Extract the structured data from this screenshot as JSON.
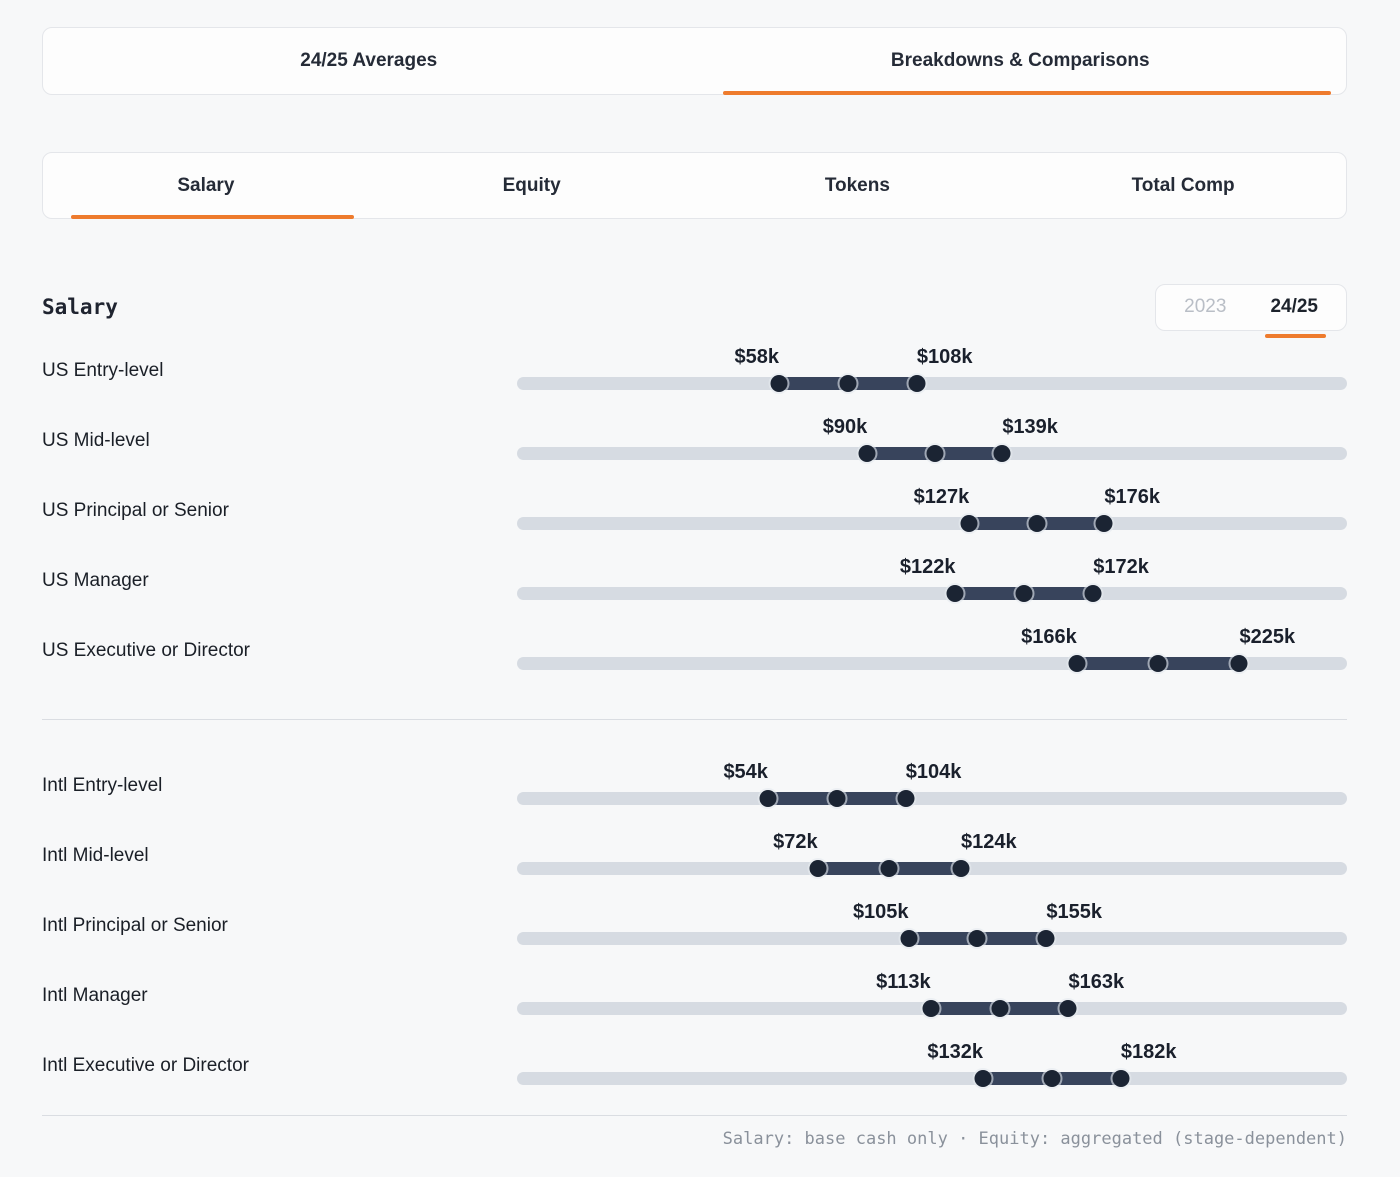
{
  "colors": {
    "accent": "#ee7b2d",
    "track": "#d6dbe2",
    "range_segment": "#38445c",
    "range_dot": "#1b2433"
  },
  "primary_tabs": [
    {
      "label": "24/25 Averages",
      "active": false
    },
    {
      "label": "Breakdowns & Comparisons",
      "active": true
    }
  ],
  "secondary_tabs": [
    {
      "label": "Salary",
      "active": true
    },
    {
      "label": "Equity",
      "active": false
    },
    {
      "label": "Tokens",
      "active": false
    },
    {
      "label": "Total Comp",
      "active": false
    }
  ],
  "section": {
    "title": "Salary"
  },
  "year_toggle": {
    "options": [
      {
        "label": "2023",
        "active": false
      },
      {
        "label": "24/25",
        "active": true
      }
    ]
  },
  "chart_data": {
    "type": "bar",
    "subtype": "range",
    "title": "Salary",
    "legend": false,
    "grid": false,
    "track_domain": {
      "min": -37,
      "max": 264
    },
    "groups": [
      {
        "name": "US",
        "rows": [
          {
            "label": "US Entry-level",
            "low": 58,
            "high": 108,
            "low_label": "$58k",
            "high_label": "$108k"
          },
          {
            "label": "US Mid-level",
            "low": 90,
            "high": 139,
            "low_label": "$90k",
            "high_label": "$139k"
          },
          {
            "label": "US Principal or Senior",
            "low": 127,
            "high": 176,
            "low_label": "$127k",
            "high_label": "$176k"
          },
          {
            "label": "US Manager",
            "low": 122,
            "high": 172,
            "low_label": "$122k",
            "high_label": "$172k"
          },
          {
            "label": "US Executive or Director",
            "low": 166,
            "high": 225,
            "low_label": "$166k",
            "high_label": "$225k"
          }
        ]
      },
      {
        "name": "Intl",
        "rows": [
          {
            "label": "Intl Entry-level",
            "low": 54,
            "high": 104,
            "low_label": "$54k",
            "high_label": "$104k"
          },
          {
            "label": "Intl Mid-level",
            "low": 72,
            "high": 124,
            "low_label": "$72k",
            "high_label": "$124k"
          },
          {
            "label": "Intl Principal or Senior",
            "low": 105,
            "high": 155,
            "low_label": "$105k",
            "high_label": "$155k"
          },
          {
            "label": "Intl Manager",
            "low": 113,
            "high": 163,
            "low_label": "$113k",
            "high_label": "$163k"
          },
          {
            "label": "Intl Executive or Director",
            "low": 132,
            "high": 182,
            "low_label": "$132k",
            "high_label": "$182k"
          }
        ]
      }
    ]
  },
  "footer": {
    "note": "Salary: base cash only · Equity: aggregated (stage-dependent)"
  }
}
